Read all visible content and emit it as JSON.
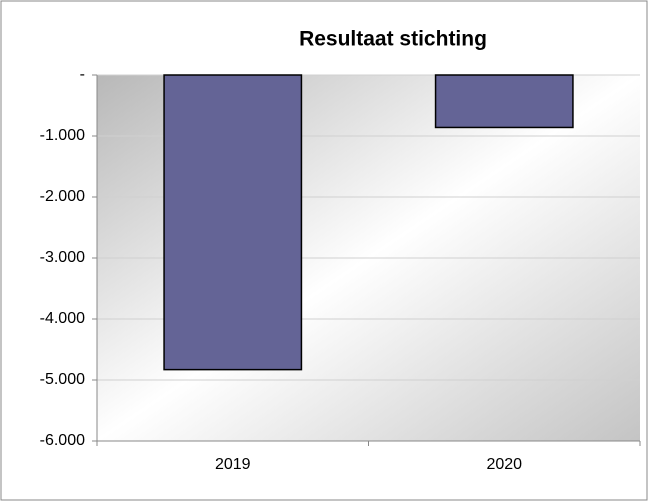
{
  "chart_data": {
    "type": "bar",
    "title": "Resultaat stichting",
    "categories": [
      "2019",
      "2020"
    ],
    "values": [
      -4830,
      -860
    ],
    "color": "#646496",
    "ylim": [
      -6000,
      0
    ],
    "yticks": [
      {
        "value": 0,
        "label": "-"
      },
      {
        "value": -1000,
        "label": "-1.000"
      },
      {
        "value": -2000,
        "label": "-2.000"
      },
      {
        "value": -3000,
        "label": "-3.000"
      },
      {
        "value": -4000,
        "label": "-4.000"
      },
      {
        "value": -5000,
        "label": "-5.000"
      },
      {
        "value": -6000,
        "label": "-6.000"
      }
    ],
    "grid": true
  }
}
